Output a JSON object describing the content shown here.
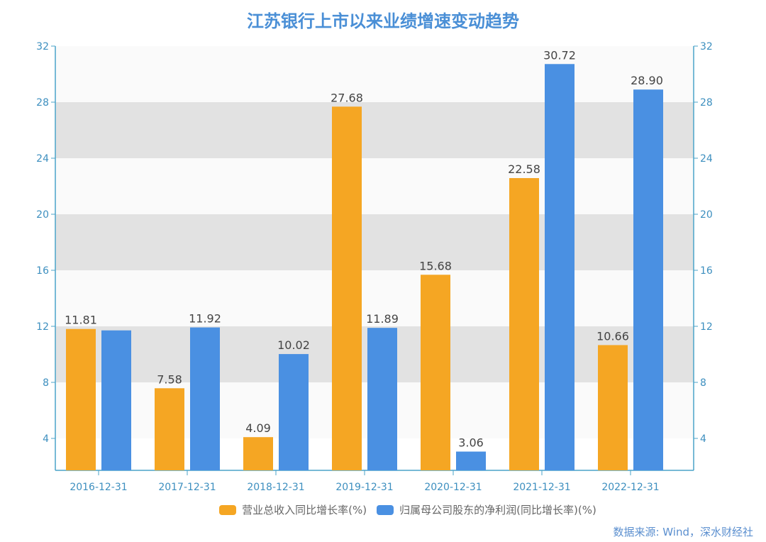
{
  "chart_data": {
    "type": "bar",
    "title": "江苏银行上市以来业绩增速变动趋势",
    "categories": [
      "2016-12-31",
      "2017-12-31",
      "2018-12-31",
      "2019-12-31",
      "2020-12-31",
      "2021-12-31",
      "2022-12-31"
    ],
    "series": [
      {
        "name": "营业总收入同比增长率(%)",
        "color": "#f5a623",
        "values": [
          11.81,
          7.58,
          4.09,
          27.68,
          15.68,
          22.58,
          10.66
        ],
        "labels": [
          "11.81",
          "7.58",
          "4.09",
          "27.68",
          "15.68",
          "22.58",
          "10.66"
        ]
      },
      {
        "name": "归属母公司股东的净利润(同比增长率)(%)",
        "color": "#4a90e2",
        "values": [
          11.71,
          11.92,
          10.02,
          11.89,
          3.06,
          30.72,
          28.9
        ],
        "labels": [
          "",
          "11.92",
          "10.02",
          "11.89",
          "3.06",
          "30.72",
          "28.90"
        ]
      }
    ],
    "yticks": [
      "4",
      "8",
      "12",
      "16",
      "20",
      "24",
      "28",
      "32"
    ],
    "ytick_values": [
      4,
      8,
      12,
      16,
      20,
      24,
      28,
      32
    ],
    "ylim": [
      1.72,
      32
    ],
    "xlabel": "",
    "ylabel": "",
    "grid": true,
    "legend_position": "bottom",
    "axis_color": "#4aa3c9",
    "tick_label_color": "#3d8fbf",
    "band_color": "#e2e2e2",
    "alt_band_color": "#fafafa"
  },
  "footer": {
    "source": "数据来源: Wind，深水财经社"
  }
}
